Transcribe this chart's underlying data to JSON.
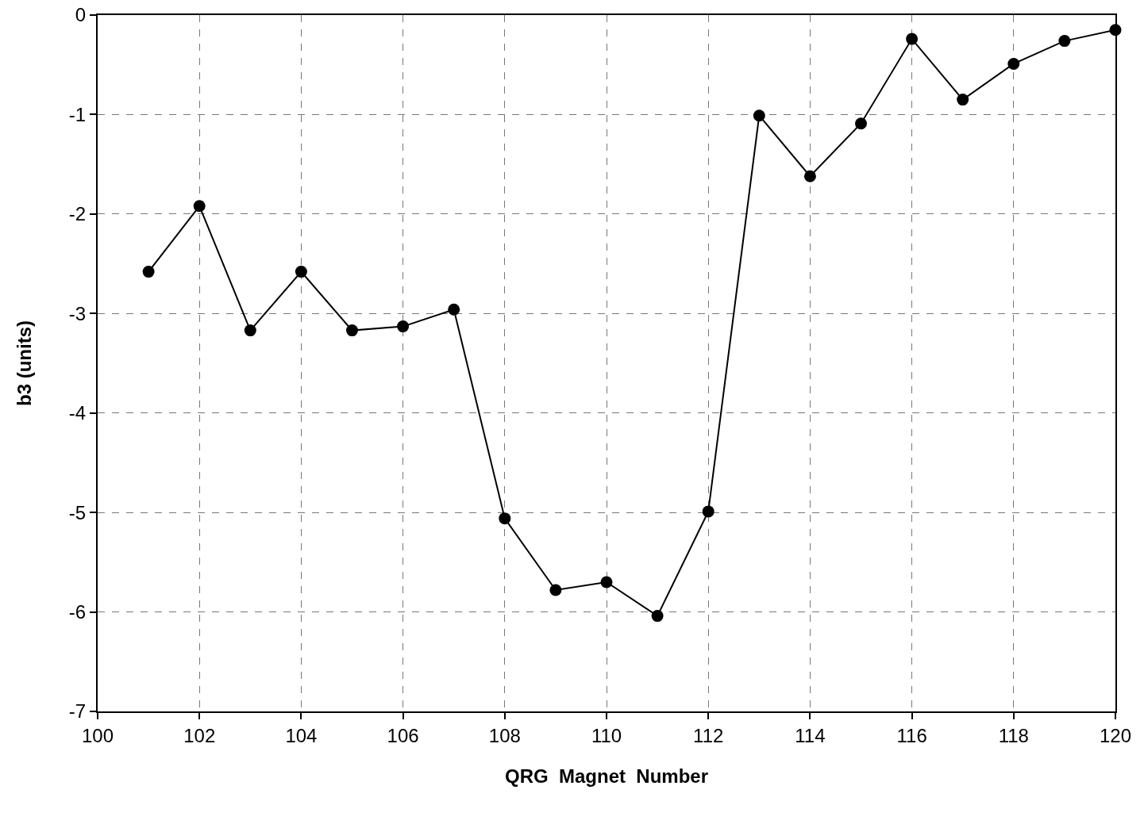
{
  "chart_data": {
    "type": "line",
    "xlabel": "QRG  Magnet  Number",
    "ylabel": "b3 (units)",
    "x": [
      101,
      102,
      103,
      104,
      105,
      106,
      107,
      108,
      109,
      110,
      111,
      112,
      113,
      114,
      115,
      116,
      117,
      118,
      119,
      120
    ],
    "series": [
      {
        "color": "#000000",
        "values": [
          -2.58,
          -1.92,
          -3.17,
          -2.58,
          -3.17,
          -3.13,
          -2.96,
          -5.06,
          -5.78,
          -5.7,
          -6.04,
          -4.99,
          -1.01,
          -1.62,
          -1.09,
          -0.24,
          -0.85,
          -0.49,
          -0.26,
          -0.15
        ]
      }
    ],
    "xlim": [
      100,
      120
    ],
    "xticks": [
      100,
      102,
      104,
      106,
      108,
      110,
      112,
      114,
      116,
      118,
      120
    ],
    "ylim": [
      -7,
      0
    ],
    "yticks": [
      -7,
      -6,
      -5,
      -4,
      -3,
      -2,
      -1,
      0
    ],
    "grid": true,
    "marker": "circle",
    "line_style": "solid",
    "legend": false
  }
}
